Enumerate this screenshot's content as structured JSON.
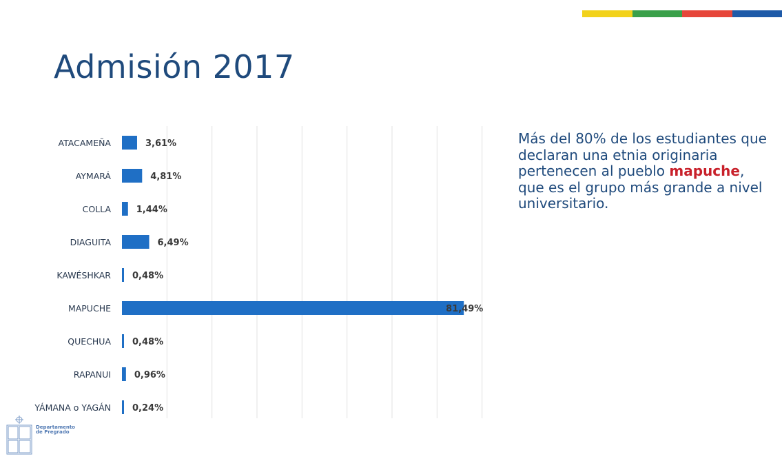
{
  "slide": {
    "title": "Admisión 2017",
    "brand_colors": [
      "#f2d21b",
      "#3aa04a",
      "#e6463a",
      "#1e5aa8"
    ]
  },
  "side_text": {
    "part1": "Más del 80% de los estudiantes que declaran una etnia originaria pertenecen al pueblo ",
    "highlight": "mapuche",
    "part2": ", que es el grupo más grande a nivel universitario.",
    "text_color": "#1f4a7c",
    "highlight_color": "#c8202a"
  },
  "logo": {
    "line1": "Departamento",
    "line2": "de Pregrado"
  },
  "chart_data": {
    "type": "bar",
    "orientation": "horizontal",
    "categories": [
      "ATACAMEÑA",
      "AYMARÁ",
      "COLLA",
      "DIAGUITA",
      "KAWÉSHKAR",
      "MAPUCHE",
      "QUECHUA",
      "RAPANUI",
      "YÁMANA o YAGÁN"
    ],
    "values": [
      3.61,
      4.81,
      1.44,
      6.49,
      0.48,
      81.49,
      0.48,
      0.96,
      0.24
    ],
    "labels": [
      "3,61%",
      "4,81%",
      "1,44%",
      "6,49%",
      "0,48%",
      "81,49%",
      "0,48%",
      "0,96%",
      "0,24%"
    ],
    "xlim": [
      0,
      90
    ],
    "grid": true,
    "legend": "none",
    "bar_color": "#1f6fc5"
  }
}
